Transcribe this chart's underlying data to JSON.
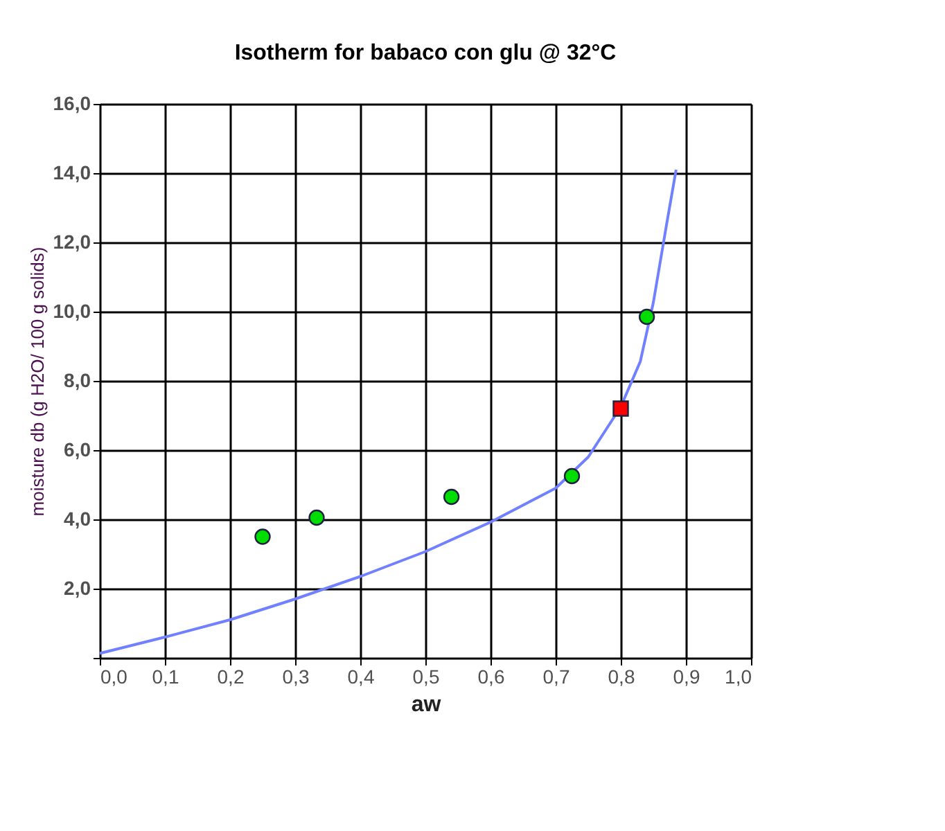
{
  "chart_data": {
    "type": "scatter",
    "title": "Isotherm for babaco con glu @ 32°C",
    "xlabel": "aw",
    "ylabel": "moisture db  (g H2O/ 100 g solids)",
    "xlim": [
      0,
      1
    ],
    "ylim": [
      0,
      16
    ],
    "xticks": [
      {
        "value": 0,
        "label": "0,0"
      },
      {
        "value": 0.1,
        "label": "0,1"
      },
      {
        "value": 0.2,
        "label": "0,2"
      },
      {
        "value": 0.3,
        "label": "0,3"
      },
      {
        "value": 0.4,
        "label": "0,4"
      },
      {
        "value": 0.5,
        "label": "0,5"
      },
      {
        "value": 0.6,
        "label": "0,6"
      },
      {
        "value": 0.7,
        "label": "0,7"
      },
      {
        "value": 0.8,
        "label": "0,8"
      },
      {
        "value": 0.9,
        "label": "0,9"
      },
      {
        "value": 1.0,
        "label": "1,0"
      }
    ],
    "yticks": [
      {
        "value": 0,
        "label": null
      },
      {
        "value": 2,
        "label": "2,0"
      },
      {
        "value": 4,
        "label": "4,0"
      },
      {
        "value": 6,
        "label": "6,0"
      },
      {
        "value": 8,
        "label": "8,0"
      },
      {
        "value": 10,
        "label": "10,0"
      },
      {
        "value": 12,
        "label": "12,0"
      },
      {
        "value": 14,
        "label": "14,0"
      },
      {
        "value": 16,
        "label": "16,0"
      }
    ],
    "grid": true,
    "series": [
      {
        "type": "line",
        "color": "#7080ff",
        "marker": "none",
        "x": [
          0,
          0.1,
          0.2,
          0.3,
          0.4,
          0.5,
          0.6,
          0.7,
          0.75,
          0.8,
          0.83,
          0.85,
          0.87,
          0.885
        ],
        "values": [
          0.13,
          0.6,
          1.1,
          1.7,
          2.35,
          3.07,
          3.92,
          4.9,
          5.8,
          7.25,
          8.56,
          10.26,
          12.48,
          14.1
        ]
      },
      {
        "color": "#00dd00",
        "marker": "circle",
        "x": [
          0.25,
          0.333,
          0.54,
          0.725,
          0.84
        ],
        "values": [
          3.5,
          4.05,
          4.65,
          5.25,
          9.85
        ]
      },
      {
        "color": "#ff0000",
        "marker": "square",
        "x": [
          0.8
        ],
        "values": [
          7.2
        ]
      }
    ]
  }
}
